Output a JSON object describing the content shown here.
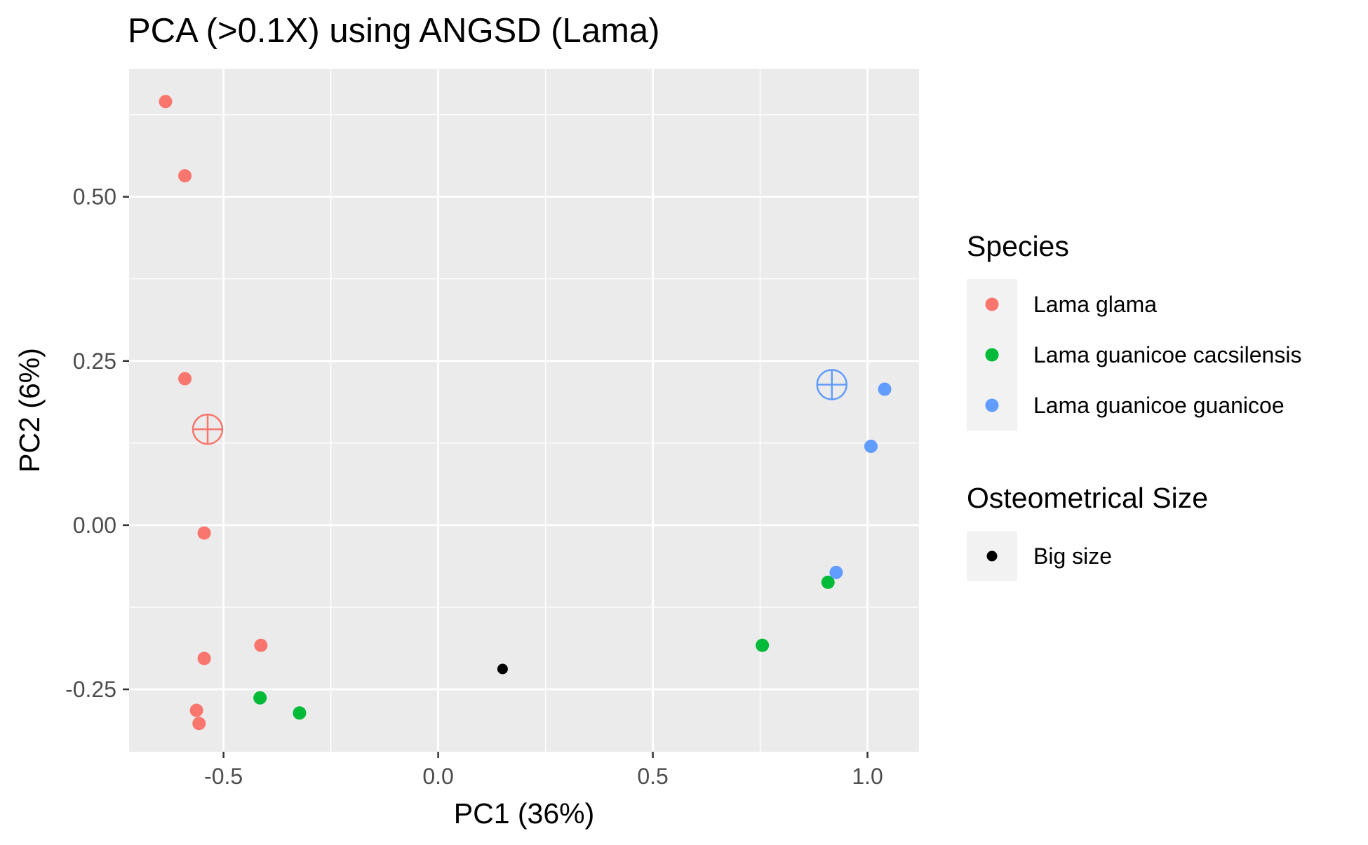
{
  "chart_data": {
    "type": "scatter",
    "title": "PCA (>0.1X) using ANGSD (Lama)",
    "xlabel": "PC1 (36%)",
    "ylabel": "PC2 (6%)",
    "xlim": [
      -0.72,
      1.12
    ],
    "ylim": [
      -0.345,
      0.695
    ],
    "x_ticks": [
      -0.5,
      0.0,
      0.5,
      1.0
    ],
    "x_tick_labels": [
      "-0.5",
      "0.0",
      "0.5",
      "1.0"
    ],
    "y_ticks": [
      -0.25,
      0.0,
      0.25,
      0.5
    ],
    "y_tick_labels": [
      "-0.25",
      "0.00",
      "0.25",
      "0.50"
    ],
    "grid": true,
    "background": "#ebebeb",
    "legend_position": "right",
    "legends": [
      {
        "title": "Species",
        "entries": [
          {
            "label": "Lama glama",
            "color": "#f8766d"
          },
          {
            "label": "Lama guanicoe cacsilensis",
            "color": "#00ba38"
          },
          {
            "label": "Lama guanicoe guanicoe",
            "color": "#619cff"
          }
        ]
      },
      {
        "title": "Osteometrical Size",
        "entries": [
          {
            "label": "Big size",
            "color": "#000000"
          }
        ]
      }
    ],
    "series": [
      {
        "name": "Lama glama",
        "color": "#f8766d",
        "points": [
          {
            "x": -0.635,
            "y": 0.645
          },
          {
            "x": -0.59,
            "y": 0.532
          },
          {
            "x": -0.59,
            "y": 0.223
          },
          {
            "x": -0.545,
            "y": -0.012
          },
          {
            "x": -0.545,
            "y": -0.203
          },
          {
            "x": -0.413,
            "y": -0.183
          },
          {
            "x": -0.563,
            "y": -0.282
          },
          {
            "x": -0.557,
            "y": -0.302
          }
        ],
        "centroid": {
          "x": -0.537,
          "y": 0.146
        }
      },
      {
        "name": "Lama guanicoe cacsilensis",
        "color": "#00ba38",
        "points": [
          {
            "x": -0.415,
            "y": -0.263
          },
          {
            "x": -0.323,
            "y": -0.286
          },
          {
            "x": 0.755,
            "y": -0.183
          },
          {
            "x": 0.908,
            "y": -0.087
          }
        ]
      },
      {
        "name": "Lama guanicoe guanicoe",
        "color": "#619cff",
        "points": [
          {
            "x": 1.04,
            "y": 0.207
          },
          {
            "x": 1.008,
            "y": 0.12
          },
          {
            "x": 0.927,
            "y": -0.072
          }
        ],
        "centroid": {
          "x": 0.917,
          "y": 0.214
        }
      },
      {
        "name": "Big size",
        "color": "#000000",
        "small": true,
        "points": [
          {
            "x": 0.15,
            "y": -0.219
          }
        ]
      }
    ]
  }
}
